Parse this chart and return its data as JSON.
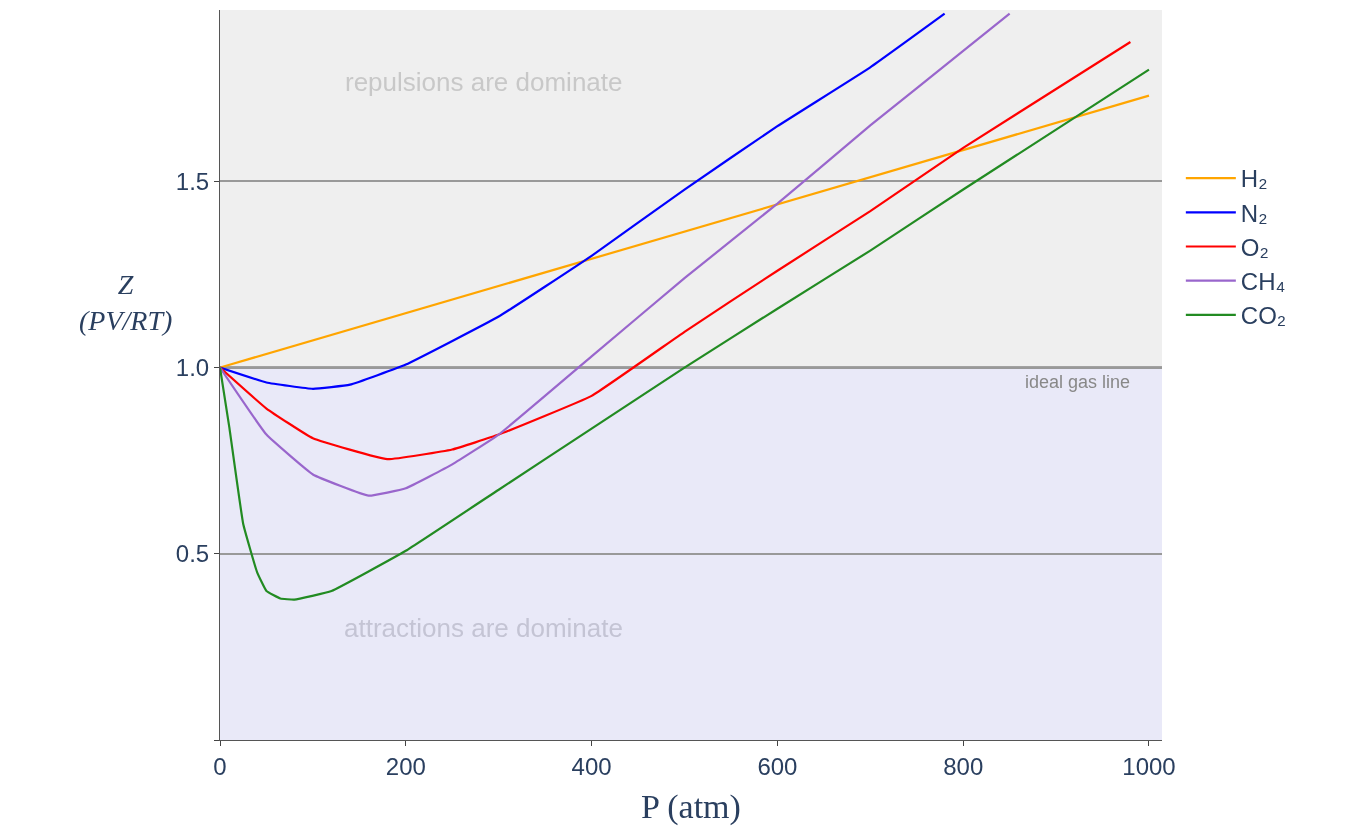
{
  "chart_data": {
    "type": "line",
    "xlabel": "P (atm)",
    "ylabel": "Z\n(PV/RT)",
    "xlim": [
      0,
      1014
    ],
    "ylim": [
      0,
      1.96
    ],
    "xticks": [
      0,
      200,
      400,
      600,
      800,
      1000
    ],
    "yticks": [
      {
        "value": 0,
        "label": null
      },
      0.5,
      {
        "value": 1.0,
        "label": "1.0"
      },
      1.5
    ],
    "grid": "y",
    "legend": "right",
    "series": [
      {
        "name": "H₂",
        "color": "#ffa500",
        "x": [
          0,
          1000
        ],
        "values": [
          1.0,
          1.73
        ]
      },
      {
        "name": "N₂",
        "color": "#0000ff",
        "x": [
          0,
          50,
          100,
          140,
          200,
          300,
          400,
          500,
          600,
          700,
          780
        ],
        "values": [
          1.0,
          0.96,
          0.943,
          0.954,
          1.008,
          1.137,
          1.3,
          1.478,
          1.648,
          1.806,
          1.95
        ]
      },
      {
        "name": "O₂",
        "color": "#ff0000",
        "x": [
          0,
          50,
          100,
          180,
          250,
          300,
          400,
          500,
          600,
          700,
          800,
          980
        ],
        "values": [
          1.0,
          0.89,
          0.81,
          0.754,
          0.78,
          0.82,
          0.924,
          1.096,
          1.26,
          1.42,
          1.59,
          1.874
        ]
      },
      {
        "name": "CH₄",
        "color": "#9966cc",
        "x": [
          0,
          50,
          100,
          160,
          200,
          250,
          300,
          400,
          500,
          600,
          700,
          800,
          850
        ],
        "values": [
          1.0,
          0.82,
          0.713,
          0.656,
          0.676,
          0.74,
          0.82,
          1.03,
          1.24,
          1.44,
          1.65,
          1.85,
          1.95
        ]
      },
      {
        "name": "CO₂",
        "color": "#228b22",
        "x": [
          0,
          10,
          25,
          40,
          50,
          65,
          80,
          120,
          200,
          300,
          400,
          500,
          600,
          700,
          800,
          1000
        ],
        "values": [
          1.0,
          0.84,
          0.58,
          0.45,
          0.4,
          0.38,
          0.377,
          0.4,
          0.508,
          0.672,
          0.836,
          1.0,
          1.158,
          1.314,
          1.478,
          1.8
        ]
      }
    ],
    "bands": [
      {
        "axis": "y",
        "from": 1.0,
        "to": 1.96,
        "label": "repulsions are dominate",
        "color": "#efefef"
      },
      {
        "axis": "y",
        "from": 0,
        "to": 1.0,
        "label": "attractions are dominate",
        "color": "#e9e9f8"
      }
    ],
    "ref_lines": [
      {
        "axis": "y",
        "value": 1.0,
        "label": "ideal gas line",
        "color": "#888888"
      }
    ]
  }
}
